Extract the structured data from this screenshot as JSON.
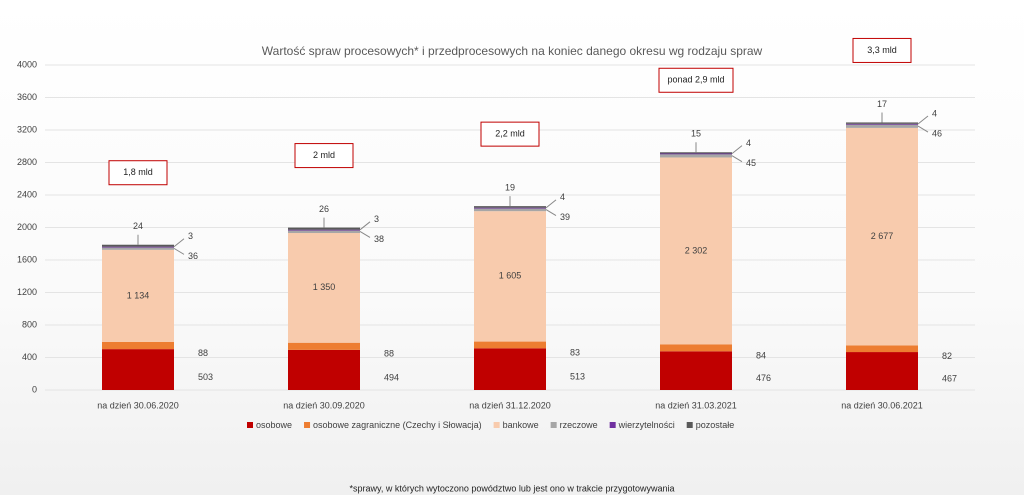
{
  "chart_data": {
    "type": "bar",
    "stacked": true,
    "title": "Wartość spraw procesowych* i przedprocesowych na koniec danego okresu wg rodzaju spraw",
    "categories": [
      "na dzień 30.06.2020",
      "na dzień 30.09.2020",
      "na dzień 31.12.2020",
      "na dzień 31.03.2021",
      "na dzień 30.06.2021"
    ],
    "series": [
      {
        "name": "osobowe",
        "color": "#c00000",
        "values": [
          503,
          494,
          513,
          476,
          467
        ]
      },
      {
        "name": "osobowe zagraniczne (Czechy i Słowacja)",
        "color": "#ed7d31",
        "values": [
          88,
          88,
          83,
          84,
          82
        ]
      },
      {
        "name": "bankowe",
        "color": "#f8cbad",
        "values": [
          1134,
          1350,
          1605,
          2302,
          2677
        ],
        "value_labels": [
          "1 134",
          "1 350",
          "1 605",
          "2 302",
          "2 677"
        ]
      },
      {
        "name": "rzeczowe",
        "color": "#a6a6a6",
        "values": [
          36,
          38,
          39,
          45,
          46
        ]
      },
      {
        "name": "wierzytelności",
        "color": "#7030a0",
        "values": [
          3,
          3,
          4,
          4,
          4
        ]
      },
      {
        "name": "pozostałe",
        "color": "#595959",
        "values": [
          24,
          26,
          19,
          15,
          17
        ]
      }
    ],
    "annotations": [
      "1,8 mld",
      "2 mld",
      "2,2 mld",
      "ponad 2,9 mld",
      "3,3 mld"
    ],
    "footnote": "*sprawy, w których wytoczono powództwo lub jest ono w trakcie przygotowywania",
    "ylim": [
      0,
      4000
    ],
    "yticks": [
      0,
      400,
      800,
      1200,
      1600,
      2000,
      2400,
      2800,
      3200,
      3600,
      4000
    ],
    "grid": true,
    "legend": "bottom"
  }
}
